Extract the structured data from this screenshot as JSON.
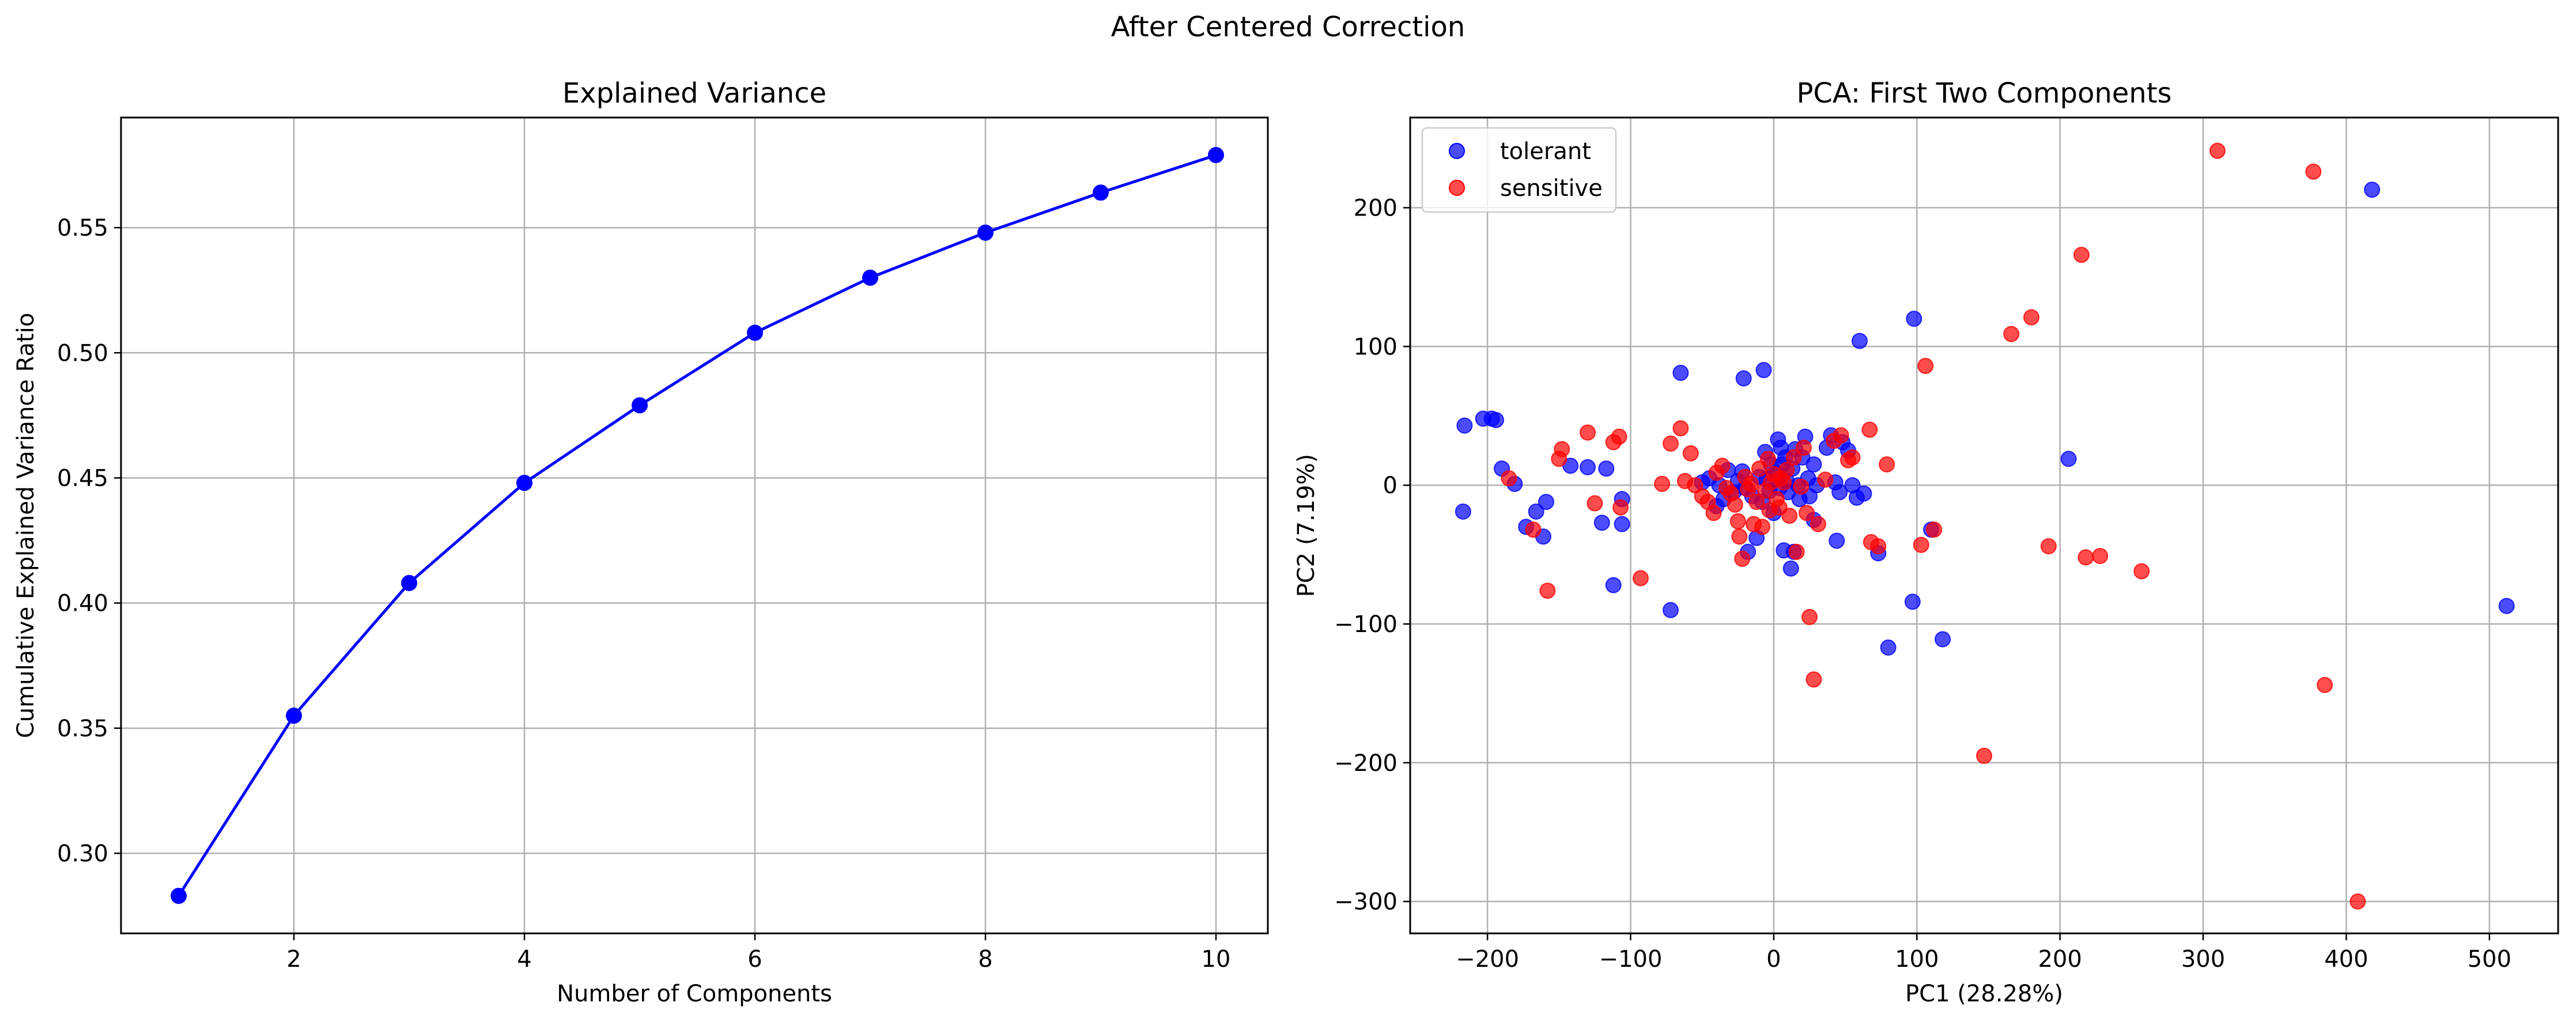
{
  "figure": {
    "title": "After Centered Correction"
  },
  "chart_data": [
    {
      "type": "line",
      "title": "Explained Variance",
      "xlabel": "Number of Components",
      "ylabel": "Cumulative Explained Variance Ratio",
      "x": [
        1,
        2,
        3,
        4,
        5,
        6,
        7,
        8,
        9,
        10
      ],
      "y": [
        0.283,
        0.355,
        0.408,
        0.448,
        0.479,
        0.508,
        0.53,
        0.548,
        0.564,
        0.579
      ],
      "xlim": [
        0.5,
        10.45
      ],
      "ylim": [
        0.268,
        0.594
      ],
      "xticks": [
        2,
        4,
        6,
        8,
        10
      ],
      "xtick_labels": [
        "2",
        "4",
        "6",
        "8",
        "10"
      ],
      "yticks": [
        0.3,
        0.35,
        0.4,
        0.45,
        0.5,
        0.55
      ],
      "ytick_labels": [
        "0.30",
        "0.35",
        "0.40",
        "0.45",
        "0.50",
        "0.55"
      ],
      "grid": true,
      "color": "#0000ff",
      "marker": "circle"
    },
    {
      "type": "scatter",
      "title": "PCA: First Two Components",
      "xlabel": "PC1 (28.28%)",
      "ylabel": "PC2 (7.19%)",
      "xlim": [
        -254,
        548
      ],
      "ylim": [
        -323,
        265
      ],
      "xticks": [
        -200,
        -100,
        0,
        100,
        200,
        300,
        400,
        500
      ],
      "xtick_labels": [
        "−200",
        "−100",
        "0",
        "100",
        "200",
        "300",
        "400",
        "500"
      ],
      "yticks": [
        -300,
        -200,
        -100,
        0,
        100,
        200
      ],
      "ytick_labels": [
        "−300",
        "−200",
        "−100",
        "0",
        "100",
        "200"
      ],
      "grid": true,
      "legend_position": "top-left",
      "series": [
        {
          "name": "tolerant",
          "color": "#0000ff",
          "points": [
            [
              -216,
              43
            ],
            [
              -217,
              -19
            ],
            [
              -203,
              48
            ],
            [
              -197,
              48
            ],
            [
              -194,
              47
            ],
            [
              -190,
              12
            ],
            [
              -181,
              1
            ],
            [
              -173,
              -30
            ],
            [
              -166,
              -19
            ],
            [
              -161,
              -37
            ],
            [
              -159,
              -12
            ],
            [
              -142,
              14
            ],
            [
              -130,
              13
            ],
            [
              -117,
              12
            ],
            [
              -120,
              -27
            ],
            [
              -112,
              -72
            ],
            [
              -106,
              -10
            ],
            [
              -106,
              -28
            ],
            [
              -72,
              -90
            ],
            [
              -65,
              81
            ],
            [
              -21,
              77
            ],
            [
              -7,
              83
            ],
            [
              -50,
              2
            ],
            [
              -45,
              5
            ],
            [
              -40,
              -15
            ],
            [
              -38,
              0
            ],
            [
              -35,
              -10
            ],
            [
              -32,
              11
            ],
            [
              -28,
              -5
            ],
            [
              -25,
              3
            ],
            [
              -22,
              10
            ],
            [
              -20,
              -2
            ],
            [
              -18,
              -48
            ],
            [
              -15,
              -8
            ],
            [
              -12,
              -38
            ],
            [
              -10,
              6
            ],
            [
              -8,
              -12
            ],
            [
              -6,
              24
            ],
            [
              -5,
              4
            ],
            [
              -3,
              -4
            ],
            [
              -2,
              15
            ],
            [
              0,
              -20
            ],
            [
              2,
              9
            ],
            [
              3,
              33
            ],
            [
              4,
              -2
            ],
            [
              5,
              27
            ],
            [
              6,
              15
            ],
            [
              7,
              -47
            ],
            [
              8,
              20
            ],
            [
              9,
              3
            ],
            [
              10,
              -5
            ],
            [
              12,
              -60
            ],
            [
              13,
              12
            ],
            [
              14,
              -48
            ],
            [
              15,
              26
            ],
            [
              17,
              0
            ],
            [
              18,
              -10
            ],
            [
              20,
              20
            ],
            [
              22,
              35
            ],
            [
              24,
              5
            ],
            [
              25,
              -8
            ],
            [
              28,
              15
            ],
            [
              28,
              -25
            ],
            [
              30,
              0
            ],
            [
              37,
              27
            ],
            [
              40,
              36
            ],
            [
              43,
              2
            ],
            [
              44,
              -40
            ],
            [
              46,
              -5
            ],
            [
              48,
              31
            ],
            [
              52,
              25
            ],
            [
              55,
              0
            ],
            [
              58,
              -9
            ],
            [
              60,
              104
            ],
            [
              63,
              -6
            ],
            [
              73,
              -49
            ],
            [
              80,
              -117
            ],
            [
              97,
              -84
            ],
            [
              98,
              120
            ],
            [
              110,
              -32
            ],
            [
              118,
              -111
            ],
            [
              206,
              19
            ],
            [
              418,
              213
            ],
            [
              512,
              -87
            ]
          ]
        },
        {
          "name": "sensitive",
          "color": "#ff0000",
          "points": [
            [
              -185,
              5
            ],
            [
              -168,
              -32
            ],
            [
              -158,
              -76
            ],
            [
              -150,
              19
            ],
            [
              -148,
              26
            ],
            [
              -130,
              38
            ],
            [
              -125,
              -13
            ],
            [
              -112,
              31
            ],
            [
              -108,
              35
            ],
            [
              -107,
              -16
            ],
            [
              -93,
              -67
            ],
            [
              -78,
              1
            ],
            [
              -72,
              30
            ],
            [
              -65,
              41
            ],
            [
              -62,
              3
            ],
            [
              -58,
              23
            ],
            [
              -55,
              0
            ],
            [
              -50,
              -8
            ],
            [
              -46,
              -12
            ],
            [
              -42,
              -20
            ],
            [
              -40,
              9
            ],
            [
              -36,
              14
            ],
            [
              -33,
              -2
            ],
            [
              -30,
              -6
            ],
            [
              -27,
              -14
            ],
            [
              -25,
              -26
            ],
            [
              -24,
              -37
            ],
            [
              -22,
              -53
            ],
            [
              -20,
              6
            ],
            [
              -18,
              -3
            ],
            [
              -16,
              1
            ],
            [
              -14,
              -28
            ],
            [
              -12,
              -12
            ],
            [
              -10,
              12
            ],
            [
              -8,
              -30
            ],
            [
              -6,
              -4
            ],
            [
              -4,
              19
            ],
            [
              -3,
              -18
            ],
            [
              -2,
              2
            ],
            [
              0,
              8
            ],
            [
              2,
              -10
            ],
            [
              4,
              -16
            ],
            [
              5,
              5
            ],
            [
              7,
              2
            ],
            [
              9,
              11
            ],
            [
              11,
              -22
            ],
            [
              14,
              20
            ],
            [
              16,
              -48
            ],
            [
              19,
              -1
            ],
            [
              21,
              27
            ],
            [
              23,
              -20
            ],
            [
              25,
              -95
            ],
            [
              28,
              -140
            ],
            [
              31,
              -28
            ],
            [
              36,
              4
            ],
            [
              42,
              32
            ],
            [
              47,
              36
            ],
            [
              52,
              18
            ],
            [
              55,
              20
            ],
            [
              67,
              40
            ],
            [
              68,
              -41
            ],
            [
              73,
              -44
            ],
            [
              79,
              15
            ],
            [
              103,
              -43
            ],
            [
              106,
              86
            ],
            [
              112,
              -32
            ],
            [
              147,
              -195
            ],
            [
              166,
              109
            ],
            [
              180,
              121
            ],
            [
              192,
              -44
            ],
            [
              215,
              166
            ],
            [
              218,
              -52
            ],
            [
              228,
              -51
            ],
            [
              257,
              -62
            ],
            [
              310,
              241
            ],
            [
              377,
              226
            ],
            [
              385,
              -144
            ],
            [
              408,
              -300
            ]
          ]
        }
      ]
    }
  ]
}
